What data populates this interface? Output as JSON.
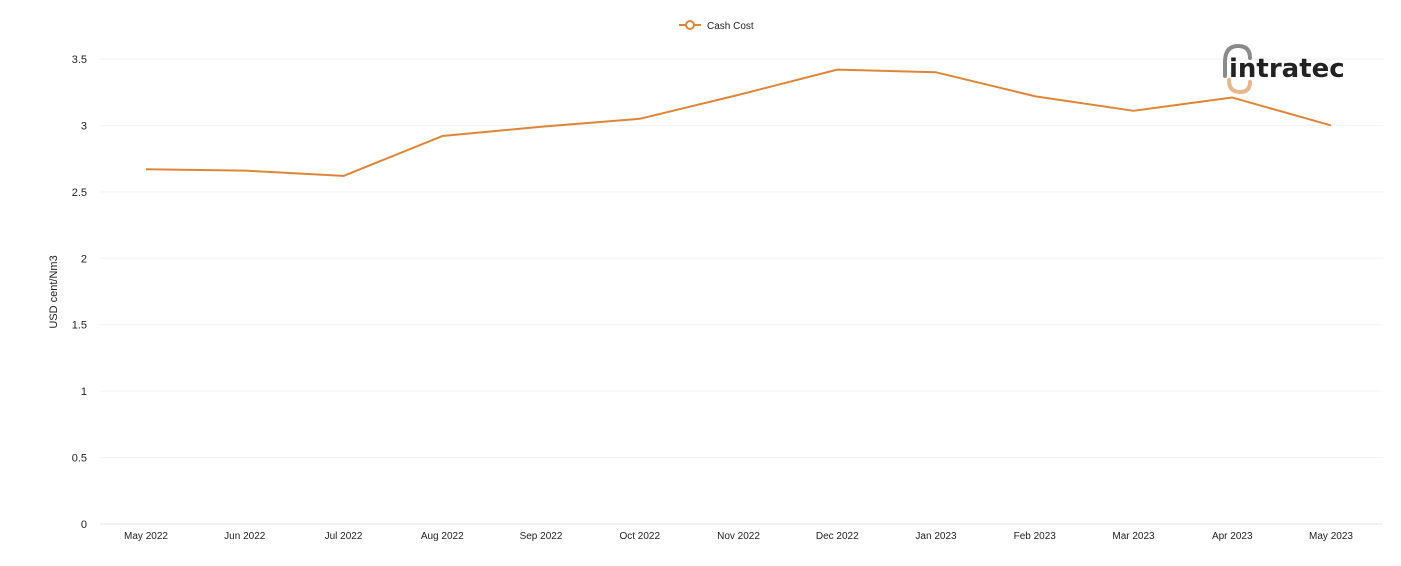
{
  "chart_data": {
    "type": "line",
    "categories": [
      "May 2022",
      "Jun 2022",
      "Jul 2022",
      "Aug 2022",
      "Sep 2022",
      "Oct 2022",
      "Nov 2022",
      "Dec 2022",
      "Jan 2023",
      "Feb 2023",
      "Mar 2023",
      "Apr 2023",
      "May 2023"
    ],
    "series": [
      {
        "name": "Cash Cost",
        "color": "#e08537",
        "values": [
          2.67,
          2.66,
          2.62,
          2.92,
          2.99,
          3.05,
          3.23,
          3.42,
          3.4,
          3.22,
          3.11,
          3.21,
          3.0
        ]
      }
    ],
    "ylabel": "USD cent/Nm3",
    "xlabel": "",
    "ylim": [
      0,
      3.5
    ],
    "yticks": [
      "0",
      "0.5",
      "1",
      "1.5",
      "2",
      "2.5",
      "3",
      "3.5"
    ],
    "grid": true,
    "legend_position": "top-center"
  },
  "logo": {
    "text": "intratec",
    "color": "#8a8a8a",
    "accent_color": "#e8b88c"
  }
}
